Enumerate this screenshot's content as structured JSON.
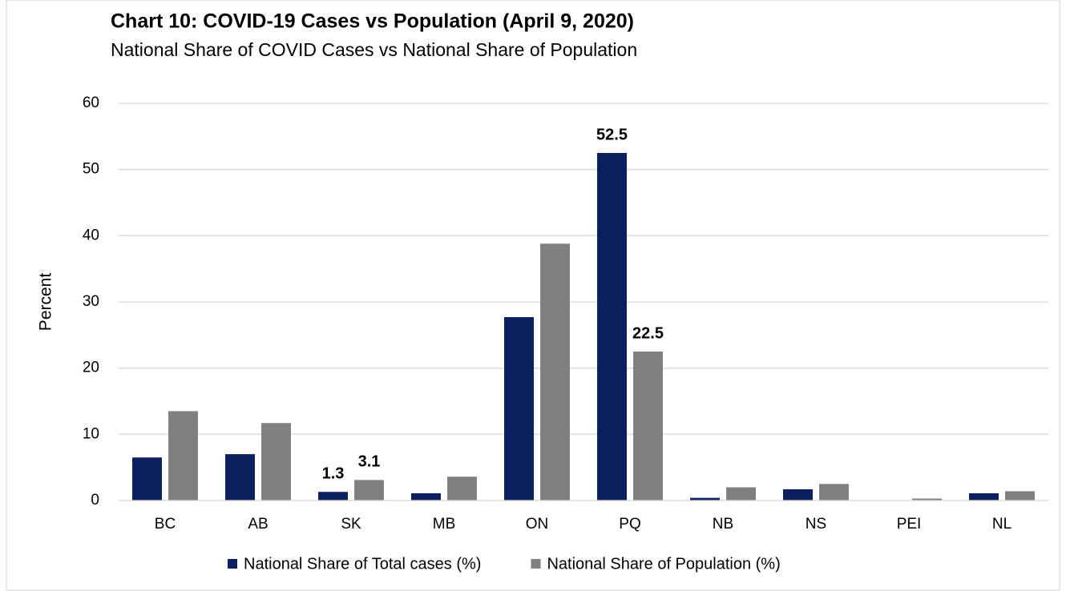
{
  "chart_data": {
    "type": "bar",
    "title": "Chart 10:  COVID-19 Cases vs Population (April 9, 2020)",
    "subtitle": "National Share of COVID Cases vs National Share of Population",
    "y_label": "Percent",
    "categories": [
      "BC",
      "AB",
      "SK",
      "MB",
      "ON",
      "PQ",
      "NB",
      "NS",
      "PEI",
      "NL"
    ],
    "series": [
      {
        "name": "National Share of Total cases (%)",
        "color": "#0c2060",
        "values": [
          6.5,
          7.0,
          1.3,
          1.1,
          27.7,
          52.5,
          0.4,
          1.7,
          0,
          1.1
        ],
        "value_labels": [
          null,
          null,
          "1.3",
          null,
          null,
          "52.5",
          null,
          null,
          null,
          null
        ]
      },
      {
        "name": "National Share of Population (%)",
        "color": "#808080",
        "values": [
          13.5,
          11.7,
          3.1,
          3.6,
          38.8,
          22.5,
          2.0,
          2.5,
          0.3,
          1.4
        ],
        "value_labels": [
          null,
          null,
          "3.1",
          null,
          null,
          "22.5",
          null,
          null,
          null,
          null
        ]
      }
    ],
    "ylim": [
      0,
      60
    ],
    "yticks": [
      0,
      10,
      20,
      30,
      40,
      50,
      60
    ],
    "grid": true,
    "legend": "bottom"
  }
}
